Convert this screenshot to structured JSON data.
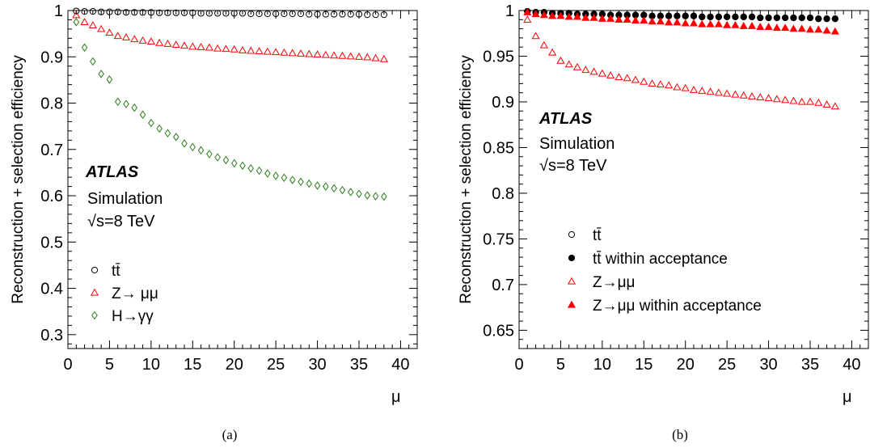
{
  "panels": [
    {
      "caption": "(a)",
      "ylabel": "Reconstruction + selection efficiency",
      "xlabel": "μ",
      "atlas": "ATLAS",
      "sim": "Simulation",
      "energy": "√s=8 TeV"
    },
    {
      "caption": "(b)",
      "ylabel": "Reconstruction + selection efficiency",
      "xlabel": "μ",
      "atlas": "ATLAS",
      "sim": "Simulation",
      "energy": "√s=8 TeV"
    }
  ],
  "chart_data": [
    {
      "type": "scatter",
      "xlabel": "μ",
      "ylabel": "Reconstruction + selection efficiency",
      "xlim": [
        0,
        42
      ],
      "ylim": [
        0.27,
        1.0
      ],
      "xticks": [
        0,
        5,
        10,
        15,
        20,
        25,
        30,
        35,
        40
      ],
      "yticks": [
        0.3,
        0.4,
        0.5,
        0.6,
        0.7,
        0.8,
        0.9,
        1
      ],
      "ytick_labels": [
        "0.3",
        "0.4",
        "0.5",
        "0.6",
        "0.7",
        "0.8",
        "0.9",
        "1"
      ],
      "legend_position": "bottom-left",
      "x": [
        1,
        2,
        3,
        4,
        5,
        6,
        7,
        8,
        9,
        10,
        11,
        12,
        13,
        14,
        15,
        16,
        17,
        18,
        19,
        20,
        21,
        22,
        23,
        24,
        25,
        26,
        27,
        28,
        29,
        30,
        31,
        32,
        33,
        34,
        35,
        36,
        37,
        38
      ],
      "series": [
        {
          "name": "tt̄",
          "color": "#000000",
          "marker": "circle-open",
          "values": [
            0.999,
            0.998,
            0.998,
            0.997,
            0.997,
            0.997,
            0.996,
            0.996,
            0.996,
            0.996,
            0.995,
            0.995,
            0.995,
            0.995,
            0.995,
            0.994,
            0.994,
            0.994,
            0.994,
            0.994,
            0.994,
            0.993,
            0.993,
            0.993,
            0.993,
            0.993,
            0.993,
            0.993,
            0.992,
            0.992,
            0.992,
            0.992,
            0.992,
            0.992,
            0.992,
            0.991,
            0.991,
            0.991
          ]
        },
        {
          "name": "Z→ μμ",
          "color": "#ff0000",
          "marker": "triangle-open",
          "values": [
            0.99,
            0.975,
            0.968,
            0.96,
            0.952,
            0.945,
            0.942,
            0.938,
            0.935,
            0.933,
            0.93,
            0.928,
            0.926,
            0.924,
            0.922,
            0.921,
            0.92,
            0.918,
            0.917,
            0.916,
            0.914,
            0.913,
            0.912,
            0.911,
            0.91,
            0.909,
            0.908,
            0.907,
            0.906,
            0.905,
            0.904,
            0.903,
            0.902,
            0.901,
            0.9,
            0.899,
            0.897,
            0.895
          ]
        },
        {
          "name": "H→γγ",
          "color": "#2e7d1e",
          "marker": "diamond-open",
          "values": [
            0.975,
            0.92,
            0.89,
            0.863,
            0.851,
            0.803,
            0.798,
            0.79,
            0.775,
            0.757,
            0.745,
            0.735,
            0.727,
            0.713,
            0.705,
            0.698,
            0.69,
            0.683,
            0.677,
            0.67,
            0.665,
            0.659,
            0.654,
            0.648,
            0.643,
            0.639,
            0.634,
            0.63,
            0.626,
            0.622,
            0.62,
            0.616,
            0.612,
            0.608,
            0.604,
            0.601,
            0.599,
            0.598
          ]
        }
      ]
    },
    {
      "type": "scatter",
      "xlabel": "μ",
      "ylabel": "Reconstruction + selection efficiency",
      "xlim": [
        0,
        42
      ],
      "ylim": [
        0.63,
        1.0
      ],
      "xticks": [
        0,
        5,
        10,
        15,
        20,
        25,
        30,
        35,
        40
      ],
      "yticks": [
        0.65,
        0.7,
        0.75,
        0.8,
        0.85,
        0.9,
        0.95,
        1
      ],
      "ytick_labels": [
        "0.65",
        "0.7",
        "0.75",
        "0.8",
        "0.85",
        "0.9",
        "0.95",
        "1"
      ],
      "legend_position": "bottom-left",
      "x": [
        1,
        2,
        3,
        4,
        5,
        6,
        7,
        8,
        9,
        10,
        11,
        12,
        13,
        14,
        15,
        16,
        17,
        18,
        19,
        20,
        21,
        22,
        23,
        24,
        25,
        26,
        27,
        28,
        29,
        30,
        31,
        32,
        33,
        34,
        35,
        36,
        37,
        38
      ],
      "series": [
        {
          "name": "tt̄",
          "color": "#000000",
          "marker": "circle-open",
          "values": [
            0.999,
            0.998,
            0.998,
            0.997,
            0.997,
            0.997,
            0.996,
            0.996,
            0.996,
            0.996,
            0.995,
            0.995,
            0.995,
            0.995,
            0.995,
            0.994,
            0.994,
            0.994,
            0.994,
            0.994,
            0.994,
            0.993,
            0.993,
            0.993,
            0.993,
            0.993,
            0.993,
            0.993,
            0.992,
            0.992,
            0.992,
            0.992,
            0.992,
            0.992,
            0.992,
            0.991,
            0.991,
            0.991
          ]
        },
        {
          "name": "tt̄ within acceptance",
          "color": "#000000",
          "marker": "circle-filled",
          "values": [
            0.999,
            0.998,
            0.998,
            0.997,
            0.997,
            0.997,
            0.996,
            0.996,
            0.996,
            0.996,
            0.995,
            0.995,
            0.995,
            0.995,
            0.995,
            0.994,
            0.994,
            0.994,
            0.994,
            0.994,
            0.994,
            0.993,
            0.993,
            0.993,
            0.993,
            0.993,
            0.993,
            0.993,
            0.992,
            0.992,
            0.992,
            0.992,
            0.992,
            0.992,
            0.992,
            0.991,
            0.991,
            0.991
          ]
        },
        {
          "name": "Z→μμ",
          "color": "#ff0000",
          "marker": "triangle-open",
          "values": [
            0.99,
            0.972,
            0.962,
            0.954,
            0.945,
            0.941,
            0.938,
            0.935,
            0.933,
            0.931,
            0.929,
            0.927,
            0.926,
            0.924,
            0.922,
            0.92,
            0.919,
            0.918,
            0.916,
            0.915,
            0.913,
            0.912,
            0.911,
            0.91,
            0.909,
            0.908,
            0.907,
            0.906,
            0.905,
            0.904,
            0.903,
            0.902,
            0.901,
            0.9,
            0.9,
            0.899,
            0.897,
            0.895
          ]
        },
        {
          "name": "Z→μμ within acceptance",
          "color": "#ff0000",
          "marker": "triangle-filled",
          "values": [
            0.998,
            0.996,
            0.995,
            0.994,
            0.994,
            0.993,
            0.993,
            0.992,
            0.992,
            0.991,
            0.991,
            0.99,
            0.99,
            0.989,
            0.989,
            0.988,
            0.988,
            0.987,
            0.987,
            0.986,
            0.986,
            0.985,
            0.985,
            0.985,
            0.984,
            0.984,
            0.983,
            0.983,
            0.982,
            0.982,
            0.981,
            0.981,
            0.98,
            0.98,
            0.979,
            0.979,
            0.978,
            0.977
          ]
        }
      ]
    }
  ]
}
